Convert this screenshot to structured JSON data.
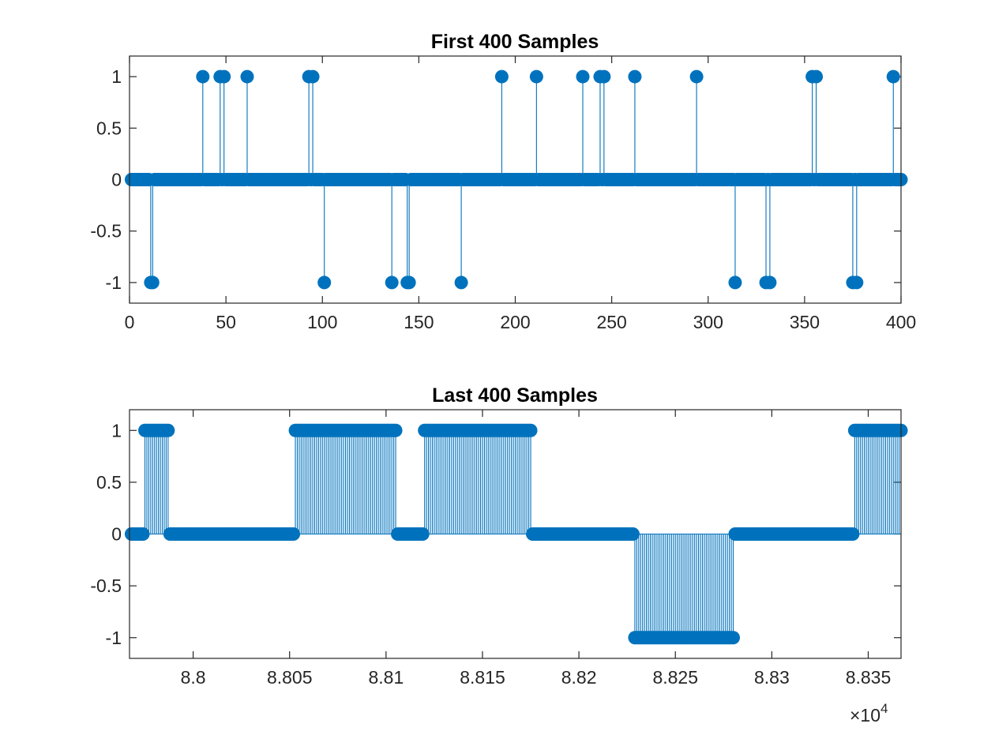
{
  "chart_data": [
    {
      "type": "stem",
      "title": "First 400 Samples",
      "xlabel": "",
      "ylabel": "",
      "xlim": [
        0,
        400
      ],
      "ylim": [
        -1.2,
        1.2
      ],
      "xticks": [
        0,
        50,
        100,
        150,
        200,
        250,
        300,
        350,
        400
      ],
      "xtick_labels": [
        "0",
        "50",
        "100",
        "150",
        "200",
        "250",
        "300",
        "350",
        "400"
      ],
      "yticks": [
        1,
        0.5,
        0,
        -0.5,
        -1
      ],
      "ytick_labels": [
        "1",
        "0.5",
        "0",
        "-0.5",
        "-1"
      ],
      "grid": false,
      "color": "#0072BD",
      "x_range": [
        1,
        400
      ],
      "default_value": 0,
      "nonzero_points": [
        {
          "x": 11,
          "y": -1
        },
        {
          "x": 12,
          "y": -1
        },
        {
          "x": 38,
          "y": 1
        },
        {
          "x": 47,
          "y": 1
        },
        {
          "x": 49,
          "y": 1
        },
        {
          "x": 61,
          "y": 1
        },
        {
          "x": 93,
          "y": 1
        },
        {
          "x": 95,
          "y": 1
        },
        {
          "x": 101,
          "y": -1
        },
        {
          "x": 136,
          "y": -1
        },
        {
          "x": 144,
          "y": -1
        },
        {
          "x": 145,
          "y": -1
        },
        {
          "x": 172,
          "y": -1
        },
        {
          "x": 193,
          "y": 1
        },
        {
          "x": 211,
          "y": 1
        },
        {
          "x": 235,
          "y": 1
        },
        {
          "x": 244,
          "y": 1
        },
        {
          "x": 246,
          "y": 1
        },
        {
          "x": 262,
          "y": 1
        },
        {
          "x": 294,
          "y": 1
        },
        {
          "x": 314,
          "y": -1
        },
        {
          "x": 330,
          "y": -1
        },
        {
          "x": 332,
          "y": -1
        },
        {
          "x": 354,
          "y": 1
        },
        {
          "x": 356,
          "y": 1
        },
        {
          "x": 375,
          "y": -1
        },
        {
          "x": 377,
          "y": -1
        },
        {
          "x": 396,
          "y": 1
        }
      ]
    },
    {
      "type": "stem",
      "title": "Last 400 Samples",
      "xlabel": "",
      "ylabel": "",
      "xlim": [
        87967,
        88367
      ],
      "ylim": [
        -1.2,
        1.2
      ],
      "xticks": [
        88000,
        88050,
        88100,
        88150,
        88200,
        88250,
        88300,
        88350
      ],
      "xtick_labels": [
        "8.8",
        "8.805",
        "8.81",
        "8.815",
        "8.82",
        "8.825",
        "8.83",
        "8.835"
      ],
      "x_exponent_label": "×10",
      "x_exponent_power": "4",
      "yticks": [
        1,
        0.5,
        0,
        -0.5,
        -1
      ],
      "ytick_labels": [
        "1",
        "0.5",
        "0",
        "-0.5",
        "-1"
      ],
      "grid": false,
      "color": "#0072BD",
      "x_range": [
        87968,
        88367
      ],
      "default_value": 0,
      "segments": [
        {
          "from": 87968,
          "to": 87974,
          "y": 0
        },
        {
          "from": 87975,
          "to": 87987,
          "y": 1
        },
        {
          "from": 87988,
          "to": 88052,
          "y": 0
        },
        {
          "from": 88053,
          "to": 88105,
          "y": 1
        },
        {
          "from": 88106,
          "to": 88119,
          "y": 0
        },
        {
          "from": 88120,
          "to": 88175,
          "y": 1
        },
        {
          "from": 88176,
          "to": 88228,
          "y": 0
        },
        {
          "from": 88229,
          "to": 88280,
          "y": -1
        },
        {
          "from": 88281,
          "to": 88342,
          "y": 0
        },
        {
          "from": 88343,
          "to": 88367,
          "y": 1
        }
      ]
    }
  ]
}
